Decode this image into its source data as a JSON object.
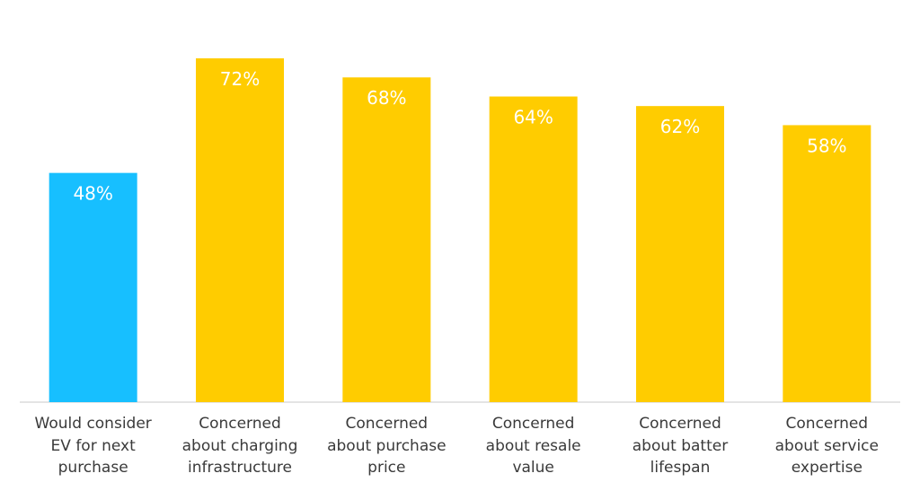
{
  "chart_data": {
    "type": "bar",
    "categories": [
      "Would consider\nEV for next\npurchase",
      "Concerned\nabout charging\ninfrastructure",
      "Concerned\nabout purchase\nprice",
      "Concerned\nabout resale\nvalue",
      "Concerned\nabout batter\nlifespan",
      "Concerned\nabout service\nexpertise"
    ],
    "values": [
      48,
      72,
      68,
      64,
      62,
      58
    ],
    "value_labels": [
      "48%",
      "72%",
      "68%",
      "64%",
      "62%",
      "58%"
    ],
    "colors": [
      "#17bfff",
      "#ffcc00",
      "#ffcc00",
      "#ffcc00",
      "#ffcc00",
      "#ffcc00"
    ]
  }
}
